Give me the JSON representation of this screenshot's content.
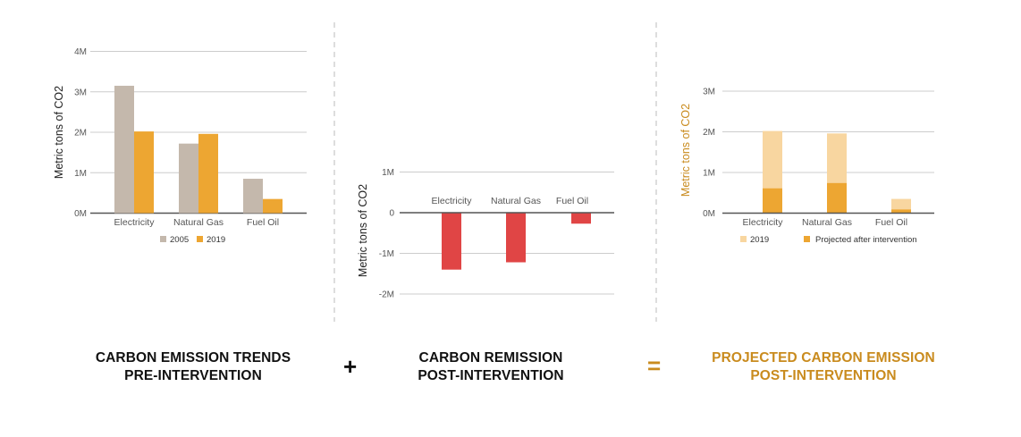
{
  "colors": {
    "c2005": "#C4B8AC",
    "c2019": "#EDA632",
    "negative": "#E04545",
    "light2019": "#F8D6A0",
    "projected": "#EDA632",
    "axisDark": "#555555",
    "grid": "#CCCCCC",
    "tick": "#555555",
    "orangeText": "#C98B1E"
  },
  "captions": {
    "trends": {
      "line1": "CARBON EMISSION TRENDS",
      "line2": "PRE-INTERVENTION"
    },
    "plus": "+",
    "remission": {
      "line1": "CARBON REMISSION",
      "line2": "POST-INTERVENTION"
    },
    "equals": "=",
    "projected": {
      "line1": "PROJECTED CARBON EMISSION",
      "line2": "POST-INTERVENTION"
    }
  },
  "chart_data": [
    {
      "type": "bar",
      "id": "trends",
      "title": "",
      "ylabel": "Metric tons of CO2",
      "categories": [
        "Electricity",
        "Natural Gas",
        "Fuel Oil"
      ],
      "ylim": [
        0,
        4000000
      ],
      "yticks": [
        0,
        1000000,
        2000000,
        3000000,
        4000000
      ],
      "ytick_labels": [
        "0M",
        "1M",
        "2M",
        "3M",
        "4M"
      ],
      "series": [
        {
          "name": "2005",
          "values": [
            3150000,
            1720000,
            850000
          ]
        },
        {
          "name": "2019",
          "values": [
            2020000,
            1960000,
            350000
          ]
        }
      ],
      "legend": [
        "2005",
        "2019"
      ]
    },
    {
      "type": "bar",
      "id": "remission",
      "title": "",
      "ylabel": "Metric tons of CO2",
      "categories": [
        "Electricity",
        "Natural Gas",
        "Fuel Oil"
      ],
      "ylim": [
        -2000000,
        1000000
      ],
      "yticks": [
        1000000,
        0,
        -1000000,
        -2000000
      ],
      "ytick_labels": [
        "1M",
        "0",
        "-1M",
        "-2M"
      ],
      "series": [
        {
          "name": "Change",
          "values": [
            -1400000,
            -1220000,
            -270000
          ]
        }
      ]
    },
    {
      "type": "bar",
      "id": "projected",
      "title": "",
      "ylabel": "Metric tons of CO2",
      "categories": [
        "Electricity",
        "Natural Gas",
        "Fuel Oil"
      ],
      "ylim": [
        0,
        3000000
      ],
      "yticks": [
        0,
        1000000,
        2000000,
        3000000
      ],
      "ytick_labels": [
        "0M",
        "1M",
        "2M",
        "3M"
      ],
      "series": [
        {
          "name": "2019",
          "values": [
            2020000,
            1960000,
            350000
          ]
        },
        {
          "name": "Projected after intervention",
          "values": [
            610000,
            740000,
            90000
          ]
        }
      ],
      "legend": [
        "2019",
        "Projected after intervention"
      ]
    }
  ]
}
